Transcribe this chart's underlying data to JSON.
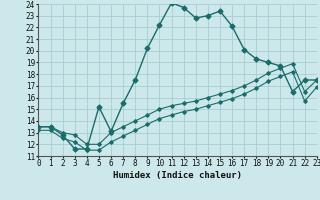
{
  "title": "",
  "xlabel": "Humidex (Indice chaleur)",
  "bg_color": "#cde8ea",
  "grid_color": "#a8cdd0",
  "line_color": "#1a6b6b",
  "xmin": 0,
  "xmax": 23,
  "ymin": 11,
  "ymax": 24,
  "curve1_x": [
    0,
    1,
    2,
    3,
    4,
    5,
    6,
    7,
    8,
    9,
    10,
    11,
    12,
    13,
    14,
    15,
    16,
    17,
    18,
    19,
    20,
    21,
    22,
    23
  ],
  "curve1_y": [
    13.5,
    13.5,
    12.8,
    11.6,
    11.6,
    15.2,
    13.1,
    15.5,
    17.5,
    20.2,
    22.2,
    24.1,
    23.7,
    22.8,
    23.0,
    23.4,
    22.1,
    20.1,
    19.3,
    19.0,
    18.7,
    16.5,
    17.5,
    17.5
  ],
  "curve2_x": [
    0,
    1,
    2,
    3,
    4,
    5,
    6,
    7,
    8,
    9,
    10,
    11,
    12,
    13,
    14,
    15,
    16,
    17,
    18,
    19,
    20,
    21,
    22,
    23
  ],
  "curve2_y": [
    13.5,
    13.5,
    13.0,
    12.8,
    12.0,
    12.0,
    13.0,
    13.5,
    14.0,
    14.5,
    15.0,
    15.3,
    15.5,
    15.7,
    16.0,
    16.3,
    16.6,
    17.0,
    17.5,
    18.1,
    18.5,
    18.9,
    16.5,
    17.5
  ],
  "curve3_x": [
    0,
    1,
    2,
    3,
    4,
    5,
    6,
    7,
    8,
    9,
    10,
    11,
    12,
    13,
    14,
    15,
    16,
    17,
    18,
    19,
    20,
    21,
    22,
    23
  ],
  "curve3_y": [
    13.2,
    13.2,
    12.5,
    12.2,
    11.5,
    11.5,
    12.2,
    12.7,
    13.2,
    13.7,
    14.2,
    14.5,
    14.8,
    15.0,
    15.3,
    15.6,
    15.9,
    16.3,
    16.8,
    17.4,
    17.8,
    18.2,
    15.7,
    16.9
  ]
}
